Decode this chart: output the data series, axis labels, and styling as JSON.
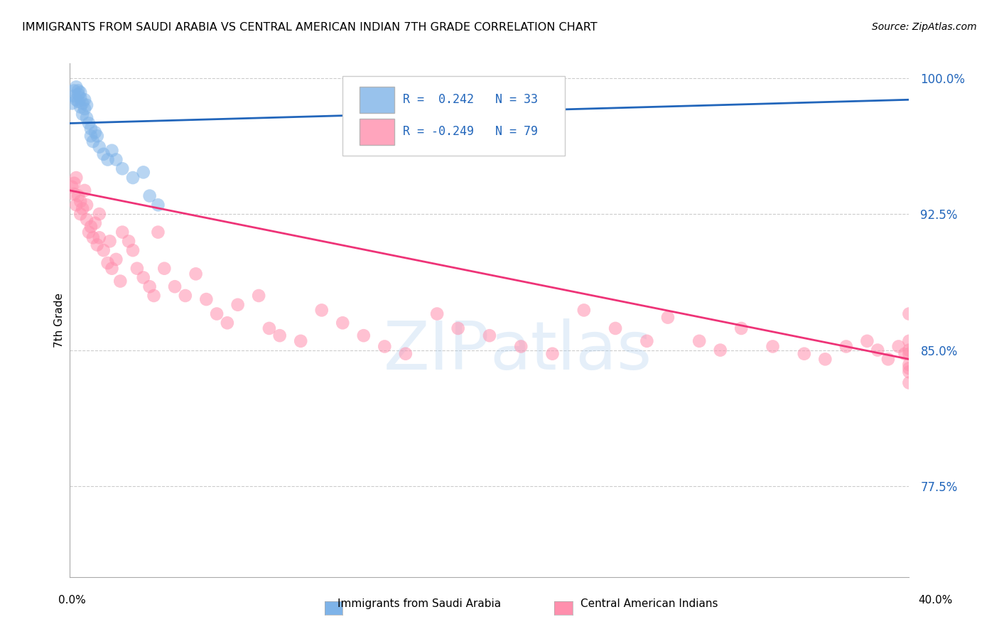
{
  "title": "IMMIGRANTS FROM SAUDI ARABIA VS CENTRAL AMERICAN INDIAN 7TH GRADE CORRELATION CHART",
  "source": "Source: ZipAtlas.com",
  "ylabel": "7th Grade",
  "x_min": 0.0,
  "x_max": 0.4,
  "y_min": 0.725,
  "y_max": 1.008,
  "ylabel_ticks": [
    0.775,
    0.85,
    0.925,
    1.0
  ],
  "ylabel_tick_labels": [
    "77.5%",
    "85.0%",
    "92.5%",
    "100.0%"
  ],
  "blue_color": "#7EB3E8",
  "pink_color": "#FF8FAD",
  "blue_line_color": "#2266BB",
  "pink_line_color": "#EE3377",
  "blue_R": 0.242,
  "blue_N": 33,
  "pink_R": -0.249,
  "pink_N": 79,
  "legend_text_color": "#2266BB",
  "watermark_color": "#AACCEE",
  "watermark_alpha": 0.3,
  "blue_scatter_x": [
    0.001,
    0.002,
    0.002,
    0.003,
    0.003,
    0.004,
    0.004,
    0.004,
    0.005,
    0.005,
    0.005,
    0.006,
    0.006,
    0.007,
    0.007,
    0.008,
    0.008,
    0.009,
    0.01,
    0.01,
    0.011,
    0.012,
    0.013,
    0.014,
    0.016,
    0.018,
    0.02,
    0.022,
    0.025,
    0.03,
    0.035,
    0.038,
    0.042
  ],
  "blue_scatter_y": [
    0.986,
    0.99,
    0.993,
    0.988,
    0.995,
    0.991,
    0.987,
    0.993,
    0.989,
    0.984,
    0.992,
    0.986,
    0.98,
    0.988,
    0.983,
    0.985,
    0.978,
    0.975,
    0.972,
    0.968,
    0.965,
    0.97,
    0.968,
    0.962,
    0.958,
    0.955,
    0.96,
    0.955,
    0.95,
    0.945,
    0.948,
    0.935,
    0.93
  ],
  "pink_scatter_x": [
    0.001,
    0.002,
    0.002,
    0.003,
    0.003,
    0.004,
    0.005,
    0.005,
    0.006,
    0.007,
    0.008,
    0.008,
    0.009,
    0.01,
    0.011,
    0.012,
    0.013,
    0.014,
    0.014,
    0.016,
    0.018,
    0.019,
    0.02,
    0.022,
    0.024,
    0.025,
    0.028,
    0.03,
    0.032,
    0.035,
    0.038,
    0.04,
    0.042,
    0.045,
    0.05,
    0.055,
    0.06,
    0.065,
    0.07,
    0.075,
    0.08,
    0.09,
    0.095,
    0.1,
    0.11,
    0.12,
    0.13,
    0.14,
    0.15,
    0.16,
    0.175,
    0.185,
    0.2,
    0.215,
    0.23,
    0.245,
    0.26,
    0.275,
    0.285,
    0.3,
    0.31,
    0.32,
    0.335,
    0.35,
    0.36,
    0.37,
    0.38,
    0.385,
    0.39,
    0.395,
    0.398,
    0.4,
    0.4,
    0.4,
    0.4,
    0.4,
    0.4,
    0.4,
    0.4
  ],
  "pink_scatter_y": [
    0.94,
    0.942,
    0.936,
    0.945,
    0.93,
    0.935,
    0.925,
    0.932,
    0.928,
    0.938,
    0.922,
    0.93,
    0.915,
    0.918,
    0.912,
    0.92,
    0.908,
    0.925,
    0.912,
    0.905,
    0.898,
    0.91,
    0.895,
    0.9,
    0.888,
    0.915,
    0.91,
    0.905,
    0.895,
    0.89,
    0.885,
    0.88,
    0.915,
    0.895,
    0.885,
    0.88,
    0.892,
    0.878,
    0.87,
    0.865,
    0.875,
    0.88,
    0.862,
    0.858,
    0.855,
    0.872,
    0.865,
    0.858,
    0.852,
    0.848,
    0.87,
    0.862,
    0.858,
    0.852,
    0.848,
    0.872,
    0.862,
    0.855,
    0.868,
    0.855,
    0.85,
    0.862,
    0.852,
    0.848,
    0.845,
    0.852,
    0.855,
    0.85,
    0.845,
    0.852,
    0.848,
    0.87,
    0.855,
    0.848,
    0.84,
    0.838,
    0.842,
    0.85,
    0.832
  ]
}
